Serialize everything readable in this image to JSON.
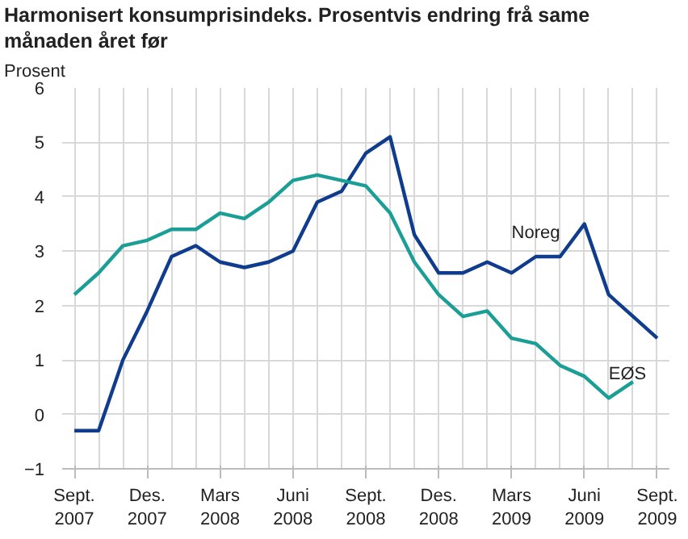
{
  "chart_data": {
    "type": "line",
    "title": "Harmonisert konsumprisindeks. Prosentvis endring frå same månaden året før",
    "ylabel": "Prosent",
    "categories": [
      "Sept.\n2007",
      null,
      null,
      "Des.\n2007",
      null,
      null,
      "Mars\n2008",
      null,
      null,
      "Juni\n2008",
      null,
      null,
      "Sept.\n2008",
      null,
      null,
      "Des.\n2008",
      null,
      null,
      "Mars\n2009",
      null,
      null,
      "Juni\n2009",
      null,
      null,
      "Sept.\n2009"
    ],
    "series": [
      {
        "name": "Noreg",
        "color": "#0f3c8c",
        "values": [
          -0.3,
          -0.3,
          1.0,
          1.9,
          2.9,
          3.1,
          2.8,
          2.7,
          2.8,
          3.0,
          3.9,
          4.1,
          4.8,
          5.1,
          3.3,
          2.6,
          2.6,
          2.8,
          2.6,
          2.9,
          2.9,
          3.5,
          2.2,
          1.8,
          1.4
        ]
      },
      {
        "name": "EØS",
        "color": "#1a9e96",
        "values": [
          2.2,
          2.6,
          3.1,
          3.2,
          3.4,
          3.4,
          3.7,
          3.6,
          3.9,
          4.3,
          4.4,
          4.3,
          4.2,
          3.7,
          2.8,
          2.2,
          1.8,
          1.9,
          1.4,
          1.3,
          0.9,
          0.7,
          0.3,
          0.6,
          null
        ]
      }
    ],
    "ylim": [
      -1,
      6
    ],
    "yticks": [
      -1,
      0,
      1,
      2,
      3,
      4,
      5,
      6
    ],
    "grid": true
  }
}
